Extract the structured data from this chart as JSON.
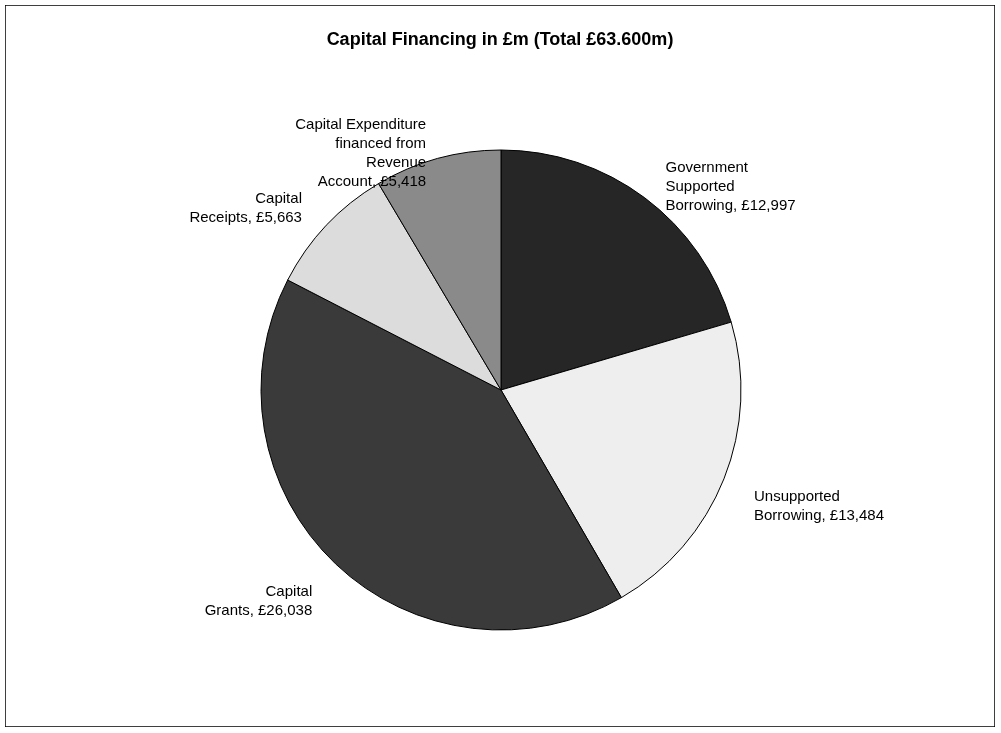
{
  "chart_data": {
    "type": "pie",
    "title": "Capital Financing in £m (Total £63.600m)",
    "categories": [
      "Government Supported Borrowing",
      "Unsupported Borrowing",
      "Capital Grants",
      "Capital Receipts",
      "Capital Expenditure financed from Revenue Account"
    ],
    "values": [
      12997,
      13484,
      26038,
      5663,
      5418
    ],
    "value_labels": [
      "£12,997",
      "£13,484",
      "£26,038",
      "£5,663",
      "£5,418"
    ],
    "colors": [
      "#262626",
      "#eeeeee",
      "#3a3a3a",
      "#dcdcdc",
      "#8a8a8a"
    ]
  }
}
